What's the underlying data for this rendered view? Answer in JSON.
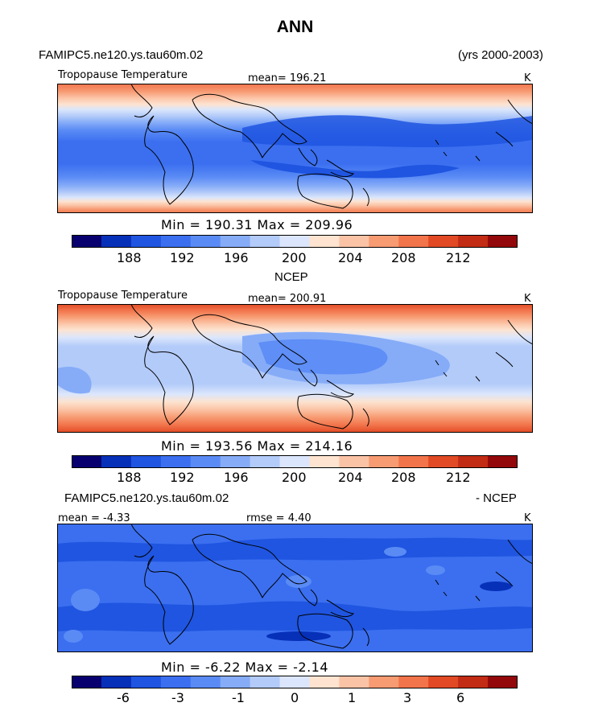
{
  "figure": {
    "title": "ANN",
    "case_name": "FAMIPC5.ne120.ys.tau60m.02",
    "years": "(yrs 2000-2003)"
  },
  "panels": [
    {
      "heading": "",
      "variable": "Tropopause Temperature",
      "mean_label": "mean= 196.21",
      "units": "K",
      "minmax": "Min = 190.31 Max = 209.96",
      "colorbar_ticks": [
        "188",
        "192",
        "196",
        "200",
        "204",
        "208",
        "212"
      ]
    },
    {
      "heading": "NCEP",
      "variable": "Tropopause Temperature",
      "mean_label": "mean= 200.91",
      "units": "K",
      "minmax": "Min = 193.56 Max = 214.16",
      "colorbar_ticks": [
        "188",
        "192",
        "196",
        "200",
        "204",
        "208",
        "212"
      ]
    },
    {
      "heading_left": "FAMIPC5.ne120.ys.tau60m.02",
      "heading_right": "- NCEP",
      "mean_label": "mean =  -4.33",
      "rmse_label": "rmse =   4.40",
      "units": "K",
      "minmax": "Min =  -6.22 Max =  -2.14",
      "colorbar_ticks": [
        "-6",
        "-3",
        "-1",
        "0",
        "1",
        "3",
        "6"
      ]
    }
  ],
  "colorbar_colors": [
    "#08006f",
    "#0730b8",
    "#1f55e0",
    "#3b6ff0",
    "#5a8bf5",
    "#86acf8",
    "#b3cbf9",
    "#dbe6fc",
    "#fde3d0",
    "#fbc3a6",
    "#f79b73",
    "#f2744b",
    "#e14a25",
    "#c22c14",
    "#93080a"
  ],
  "chart_data": [
    {
      "type": "heatmap",
      "title": "Tropopause Temperature",
      "units": "K",
      "mean": 196.21,
      "min": 190.31,
      "max": 209.96,
      "contour_levels": [
        186,
        188,
        190,
        192,
        194,
        196,
        198,
        200,
        202,
        204,
        206,
        208,
        210,
        212,
        214
      ],
      "colorbar_ticks": [
        188,
        192,
        196,
        200,
        204,
        208,
        212
      ]
    },
    {
      "type": "heatmap",
      "title": "Tropopause Temperature (NCEP)",
      "units": "K",
      "mean": 200.91,
      "min": 193.56,
      "max": 214.16,
      "contour_levels": [
        186,
        188,
        190,
        192,
        194,
        196,
        198,
        200,
        202,
        204,
        206,
        208,
        210,
        212,
        214
      ],
      "colorbar_ticks": [
        188,
        192,
        196,
        200,
        204,
        208,
        212
      ]
    },
    {
      "type": "heatmap",
      "title": "FAMIPC5.ne120.ys.tau60m.02 - NCEP",
      "units": "K",
      "mean": -4.33,
      "rmse": 4.4,
      "min": -6.22,
      "max": -2.14,
      "contour_levels": [
        -8,
        -6,
        -5,
        -4,
        -3,
        -2,
        -1,
        0,
        1,
        2,
        3,
        4,
        5,
        6,
        8
      ],
      "colorbar_ticks": [
        -6,
        -3,
        -1,
        0,
        1,
        3,
        6
      ]
    }
  ]
}
